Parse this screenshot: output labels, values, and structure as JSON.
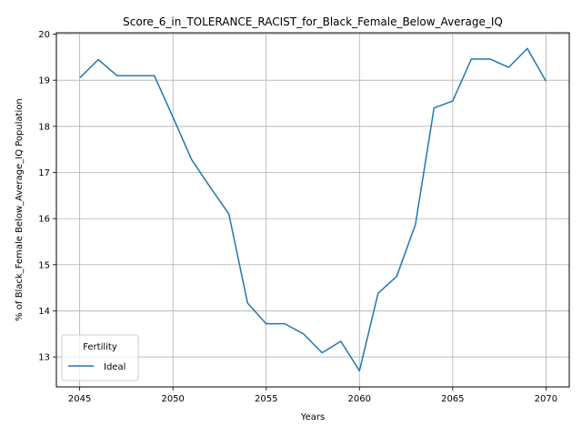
{
  "chart_data": {
    "type": "line",
    "title": "Score_6_in_TOLERANCE_RACIST_for_Black_Female_Below_Average_IQ",
    "xlabel": "Years",
    "ylabel": "% of Black_Female Below_Average_IQ Population",
    "xlim": [
      2043.75,
      2071.25
    ],
    "ylim": [
      12.35,
      20.03
    ],
    "xticks": [
      2045,
      2050,
      2055,
      2060,
      2065,
      2070
    ],
    "yticks": [
      13,
      14,
      15,
      16,
      17,
      18,
      19,
      20
    ],
    "grid": true,
    "legend": {
      "title": "Fertility",
      "placement": "lower-left"
    },
    "series": [
      {
        "name": "Ideal",
        "color": "#1f77b4",
        "x": [
          2045,
          2046,
          2047,
          2048,
          2049,
          2050,
          2051,
          2052,
          2053,
          2054,
          2055,
          2056,
          2057,
          2058,
          2059,
          2060,
          2061,
          2062,
          2063,
          2064,
          2065,
          2066,
          2067,
          2068,
          2069,
          2070
        ],
        "y": [
          19.05,
          19.45,
          19.1,
          19.1,
          19.1,
          18.2,
          17.28,
          16.68,
          16.1,
          14.17,
          13.72,
          13.72,
          13.5,
          13.09,
          13.34,
          12.7,
          14.38,
          14.75,
          15.87,
          18.4,
          18.55,
          19.46,
          19.46,
          19.28,
          19.69,
          18.98
        ]
      }
    ]
  }
}
